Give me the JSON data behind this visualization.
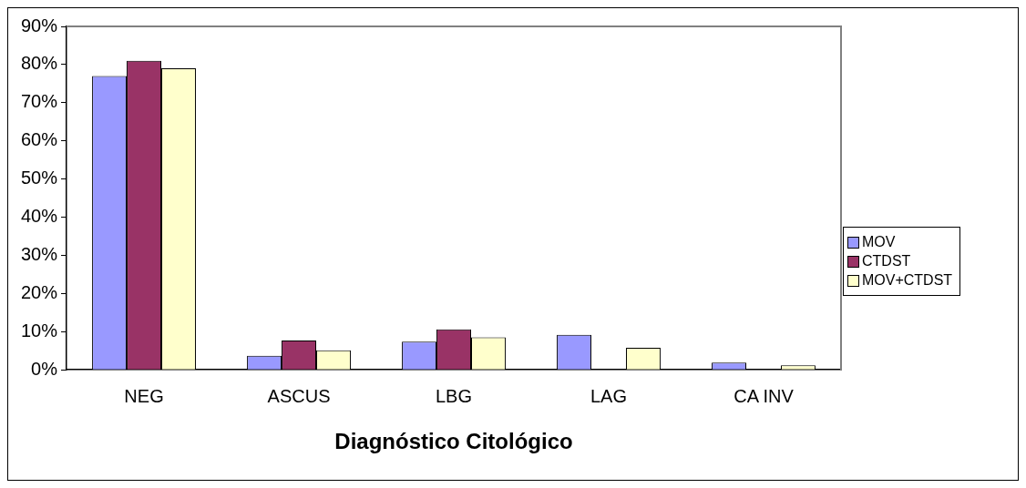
{
  "chart_data": {
    "type": "bar",
    "xlabel": "Diagnóstico Citológico",
    "categories": [
      "NEG",
      "ASCUS",
      "LBG",
      "LAG",
      "CA INV"
    ],
    "series": [
      {
        "name": "MOV",
        "color": "#9999ff",
        "values": [
          77,
          3.7,
          7.4,
          9.2,
          1.9
        ]
      },
      {
        "name": "CTDST",
        "color": "#993366",
        "values": [
          81,
          7.7,
          10.6,
          0,
          null
        ]
      },
      {
        "name": "MOV+CTDST",
        "color": "#ffffcc",
        "values": [
          79,
          5.1,
          8.5,
          5.8,
          1.2
        ]
      }
    ],
    "ylim": [
      0,
      90
    ],
    "yticks": [
      {
        "value": 0,
        "label": "0%"
      },
      {
        "value": 10,
        "label": "10%"
      },
      {
        "value": 20,
        "label": "20%"
      },
      {
        "value": 30,
        "label": "30%"
      },
      {
        "value": 40,
        "label": "40%"
      },
      {
        "value": 50,
        "label": "50%"
      },
      {
        "value": 60,
        "label": "60%"
      },
      {
        "value": 70,
        "label": "70%"
      },
      {
        "value": 80,
        "label": "80%"
      },
      {
        "value": 90,
        "label": "90%"
      }
    ],
    "grid": false,
    "legend": "right"
  }
}
